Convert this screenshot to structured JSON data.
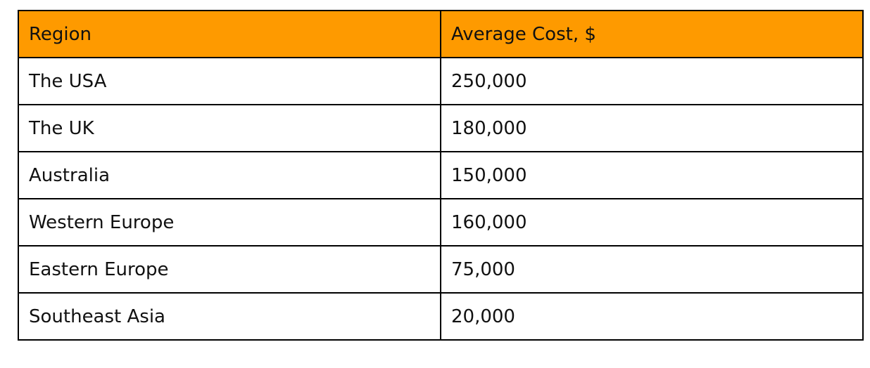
{
  "table": {
    "header": [
      "Region",
      "Average Cost, $"
    ],
    "rows": [
      [
        "The USA",
        "250,000"
      ],
      [
        "The UK",
        "180,000"
      ],
      [
        "Australia",
        "150,000"
      ],
      [
        "Western Europe",
        "160,000"
      ],
      [
        "Eastern Europe",
        "75,000"
      ],
      [
        "Southeast Asia",
        "20,000"
      ]
    ]
  }
}
